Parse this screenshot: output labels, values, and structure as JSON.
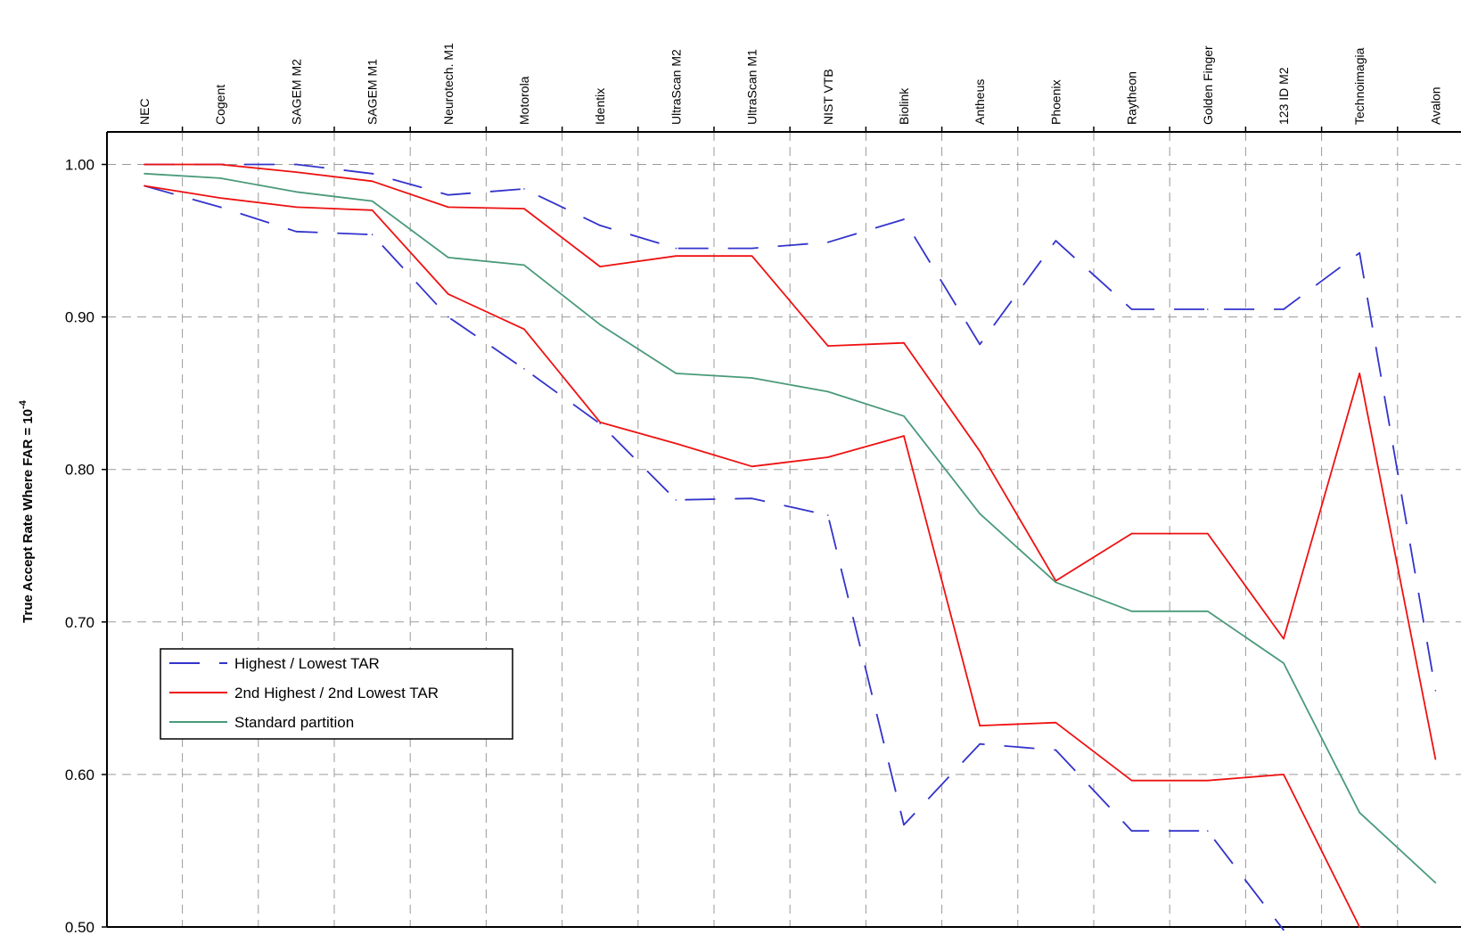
{
  "chart_data": {
    "type": "line",
    "ylabel": "True Accept Rate Where FAR = 10",
    "ylabel_exponent": "-4",
    "ylim": [
      0.5,
      1.02
    ],
    "yticks": [
      "1.00",
      "0.90",
      "0.80",
      "0.70",
      "0.60",
      "0.50"
    ],
    "ytick_values": [
      1.0,
      0.9,
      0.8,
      0.7,
      0.6,
      0.5
    ],
    "grid": true,
    "legend_position": "lower-left",
    "categories": [
      "NEC",
      "Cogent",
      "SAGEM M2",
      "SAGEM M1",
      "Neurotech. M1",
      "Motorola",
      "Identix",
      "UltraScan M2",
      "UltraScan M1",
      "NIST VTB",
      "Biolink",
      "Antheus",
      "Phoenix",
      "Raytheon",
      "Golden Finger",
      "123 ID M2",
      "Technoimagia",
      "Avalon"
    ],
    "series": [
      {
        "name": "Highest / Lowest TAR",
        "color": "#3333cc",
        "dash": true,
        "values": [
          1.0,
          1.0,
          1.0,
          0.994,
          0.98,
          0.984,
          0.96,
          0.945,
          0.945,
          0.949,
          0.964,
          0.882,
          0.95,
          0.905,
          0.905,
          0.905,
          0.942,
          0.655
        ]
      },
      {
        "name": "",
        "color": "#3333cc",
        "dash": true,
        "values": [
          0.986,
          0.972,
          0.956,
          0.954,
          0.9,
          0.866,
          0.83,
          0.78,
          0.781,
          0.77,
          0.567,
          0.62,
          0.616,
          0.563,
          0.563,
          0.498,
          null,
          null
        ]
      },
      {
        "name": "2nd Highest / 2nd Lowest TAR",
        "color": "#ee1111",
        "dash": false,
        "values": [
          1.0,
          1.0,
          0.995,
          0.989,
          0.972,
          0.971,
          0.933,
          0.94,
          0.94,
          0.881,
          0.883,
          0.812,
          0.727,
          0.758,
          0.758,
          0.689,
          0.863,
          0.61
        ]
      },
      {
        "name": "",
        "color": "#ee1111",
        "dash": false,
        "values": [
          0.986,
          0.978,
          0.972,
          0.97,
          0.915,
          0.892,
          0.831,
          0.817,
          0.802,
          0.808,
          0.822,
          0.632,
          0.634,
          0.596,
          0.596,
          0.6,
          0.5,
          null
        ]
      },
      {
        "name": "Standard partition",
        "color": "#4a9a7a",
        "dash": false,
        "values": [
          0.994,
          0.991,
          0.982,
          0.976,
          0.939,
          0.934,
          0.895,
          0.863,
          0.86,
          0.851,
          0.835,
          0.771,
          0.726,
          0.707,
          0.707,
          0.673,
          0.575,
          0.529
        ]
      }
    ]
  }
}
